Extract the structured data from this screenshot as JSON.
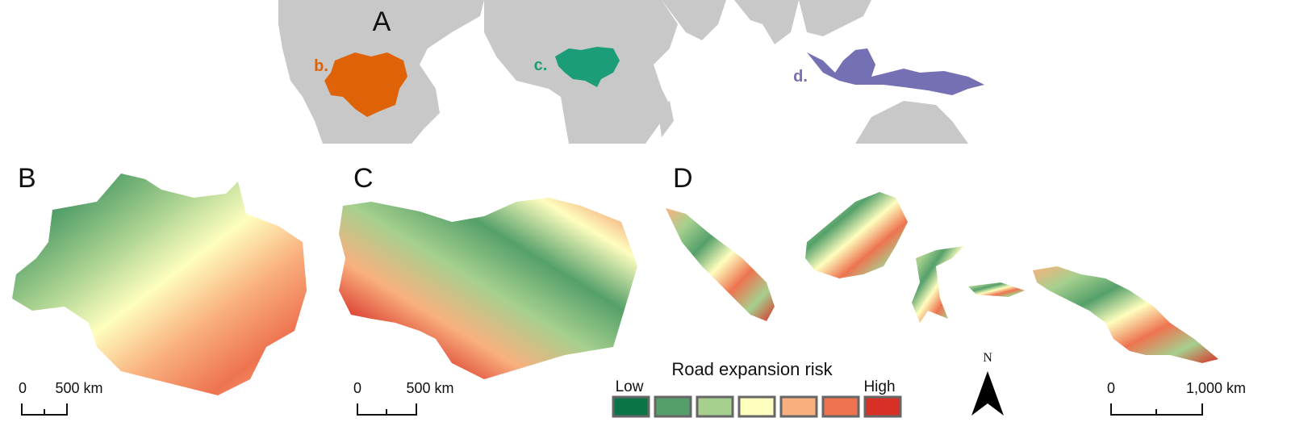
{
  "overview": {
    "label": "A",
    "regions": [
      {
        "label": "b.",
        "color": "#e06207"
      },
      {
        "label": "c.",
        "color": "#1b9e77"
      },
      {
        "label": "d.",
        "color": "#7570b3"
      }
    ]
  },
  "panels": [
    {
      "label": "B",
      "scale": [
        "0",
        "500 km"
      ]
    },
    {
      "label": "C",
      "scale": [
        "0",
        "500 km"
      ]
    },
    {
      "label": "D",
      "scale": [
        "0",
        "1,000 km"
      ]
    }
  ],
  "legend": {
    "title": "Road expansion risk",
    "low": "Low",
    "high": "High",
    "colors": [
      "#0b7447",
      "#55a06a",
      "#a6d08e",
      "#fefebe",
      "#f9b07e",
      "#ee7450",
      "#d83027"
    ]
  },
  "north": "N"
}
